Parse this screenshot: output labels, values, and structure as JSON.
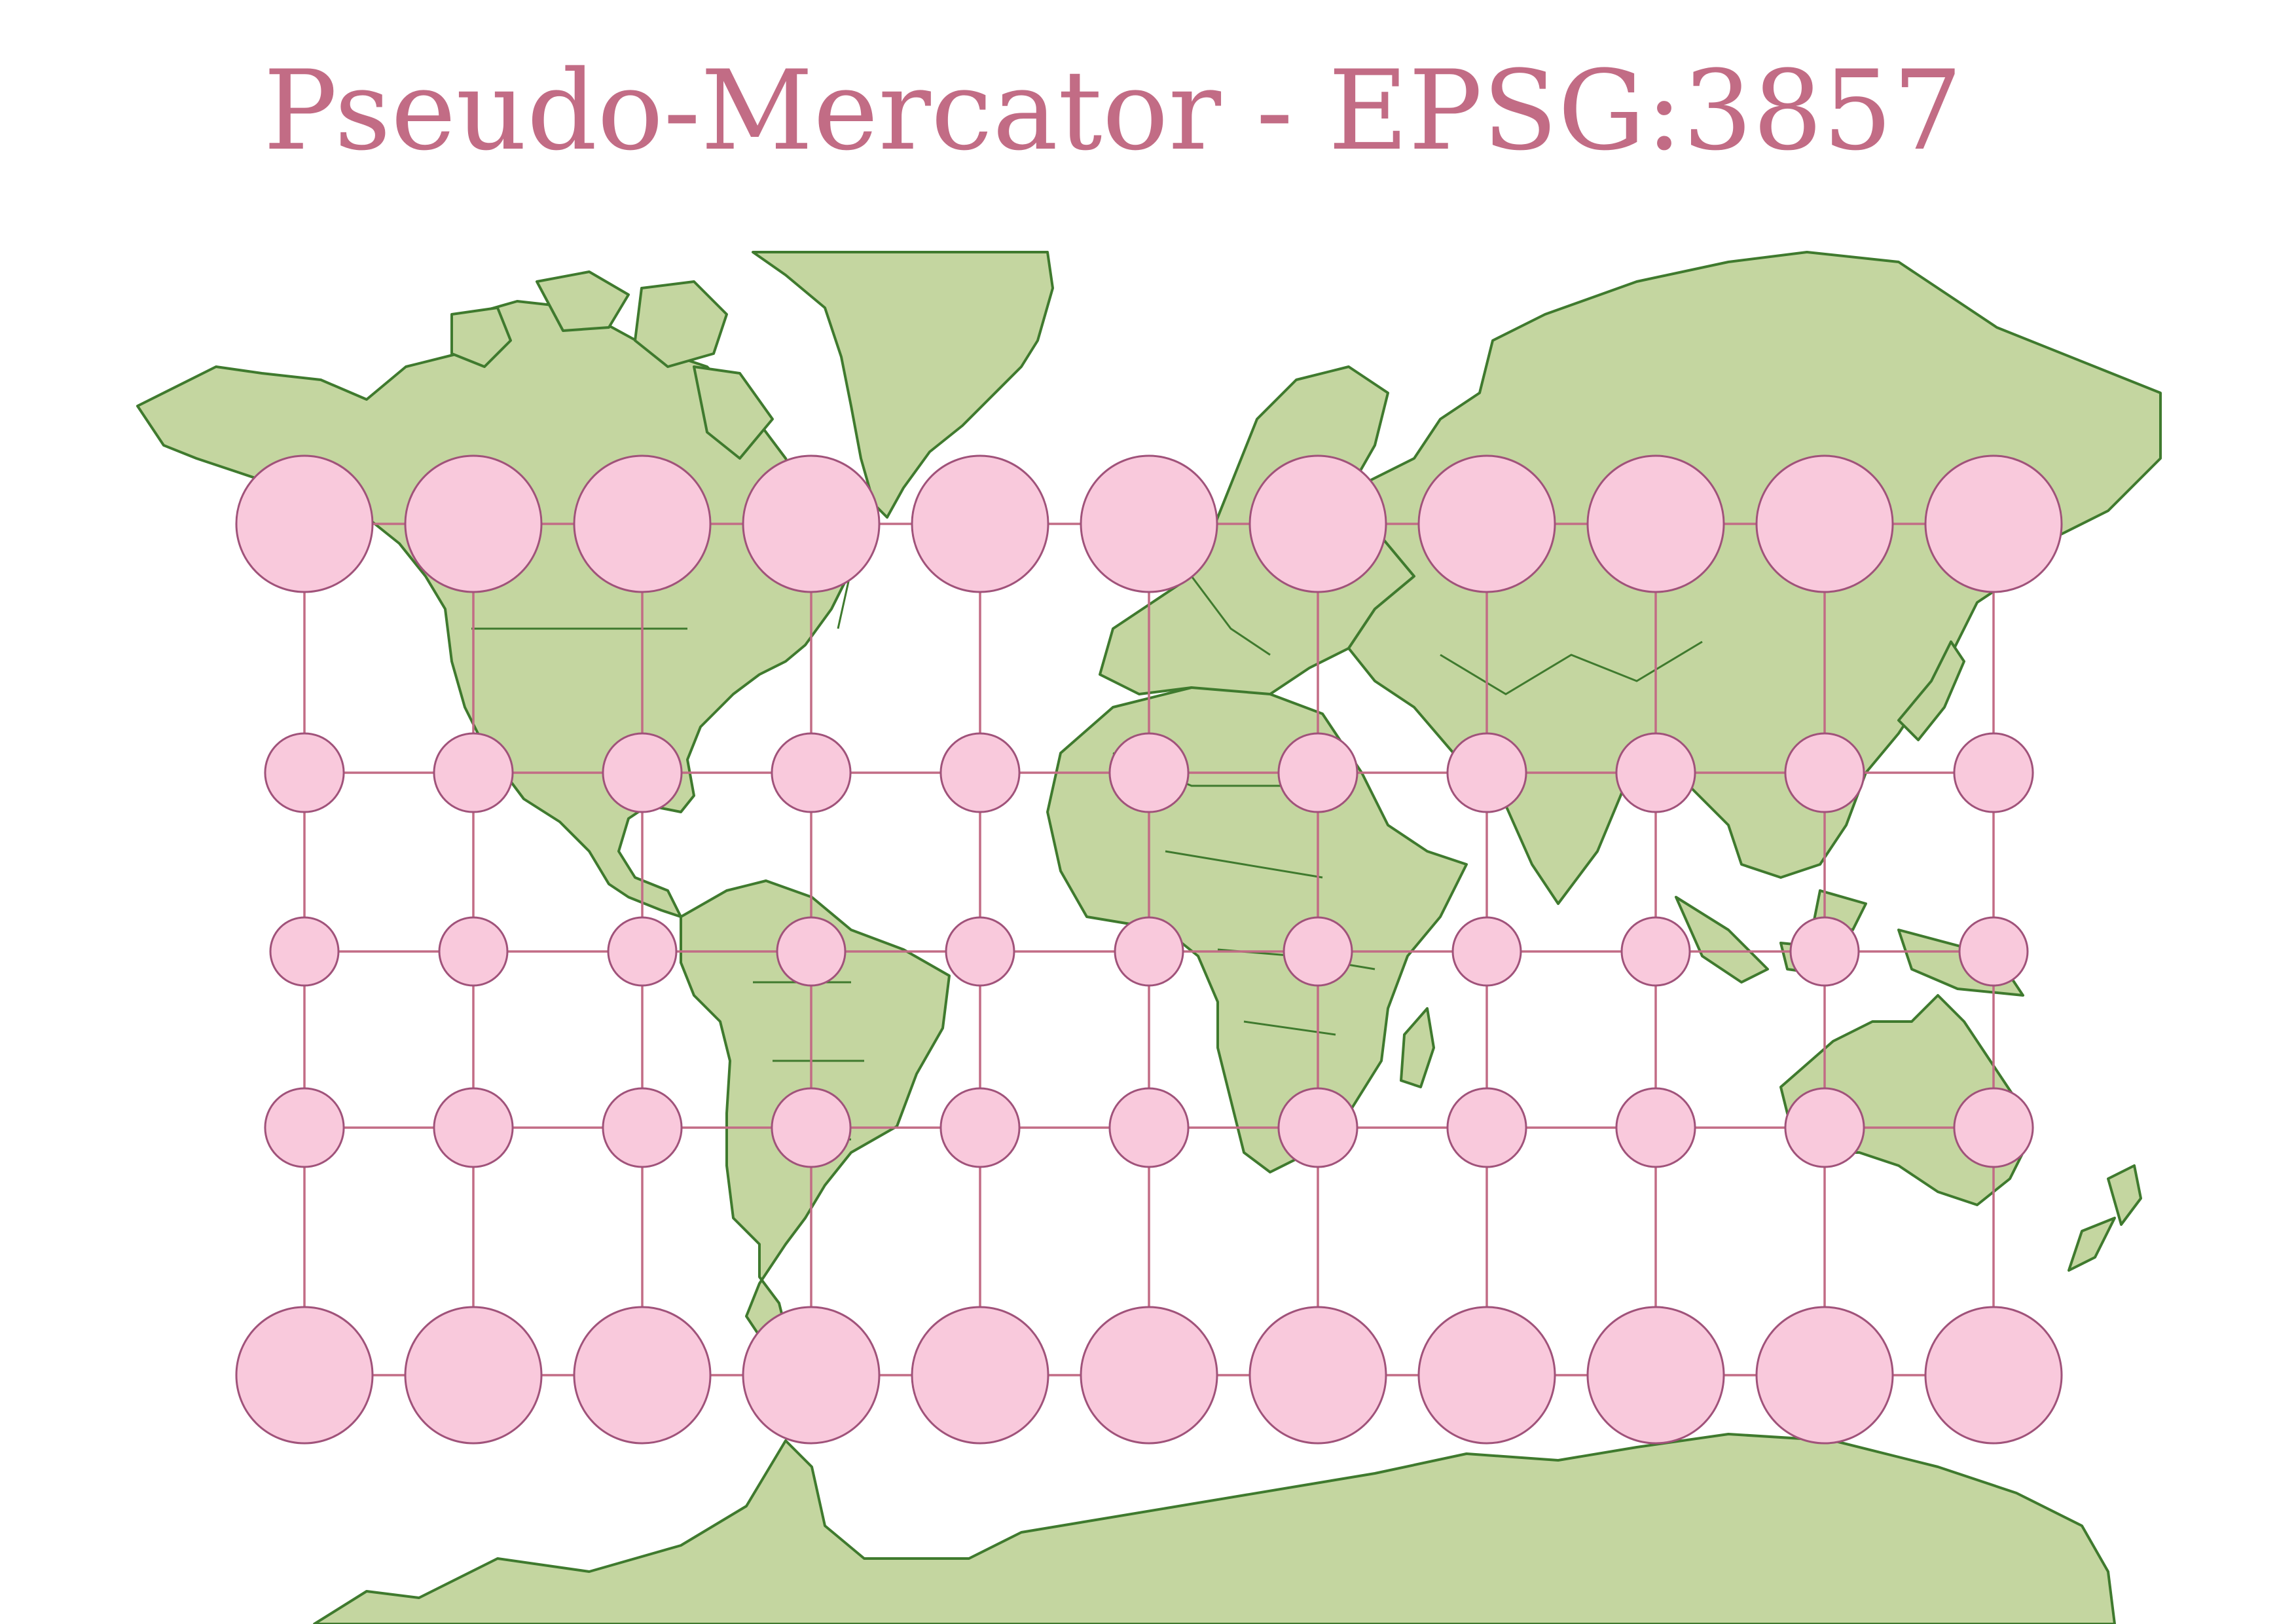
{
  "title": "Pseudo-Mercator - EPSG:3857",
  "map": {
    "projection": "Pseudo-Mercator",
    "epsg": "EPSG:3857",
    "colors": {
      "land_fill": "#c4d6a0",
      "land_stroke": "#3f7a2e",
      "graticule": "#c26c85",
      "indicatrix_fill": "#f9c9dc",
      "indicatrix_stroke": "#a0527a",
      "title": "#c26c85",
      "background": "#ffffff"
    },
    "graticule": {
      "longitudes": [
        -150,
        -120,
        -90,
        -60,
        -30,
        0,
        30,
        60,
        90,
        120,
        150
      ],
      "latitudes": [
        60,
        30,
        0,
        -30,
        -60
      ]
    },
    "indicatrix": {
      "radius_km_equator_relative": 1,
      "scale_rows": [
        {
          "latitude": 60,
          "relative_size": 2
        },
        {
          "latitude": 30,
          "relative_size": 1.155
        },
        {
          "latitude": 0,
          "relative_size": 1
        },
        {
          "latitude": -30,
          "relative_size": 1.155
        },
        {
          "latitude": -60,
          "relative_size": 2
        }
      ]
    },
    "features": [
      "greenland-landmass",
      "north-america-landmass",
      "south-america-landmass",
      "europe-landmass",
      "africa-landmass",
      "asia-landmass",
      "australia-landmass",
      "antarctica-landmass",
      "madagascar-island",
      "new-zealand-island",
      "japan-island"
    ]
  }
}
